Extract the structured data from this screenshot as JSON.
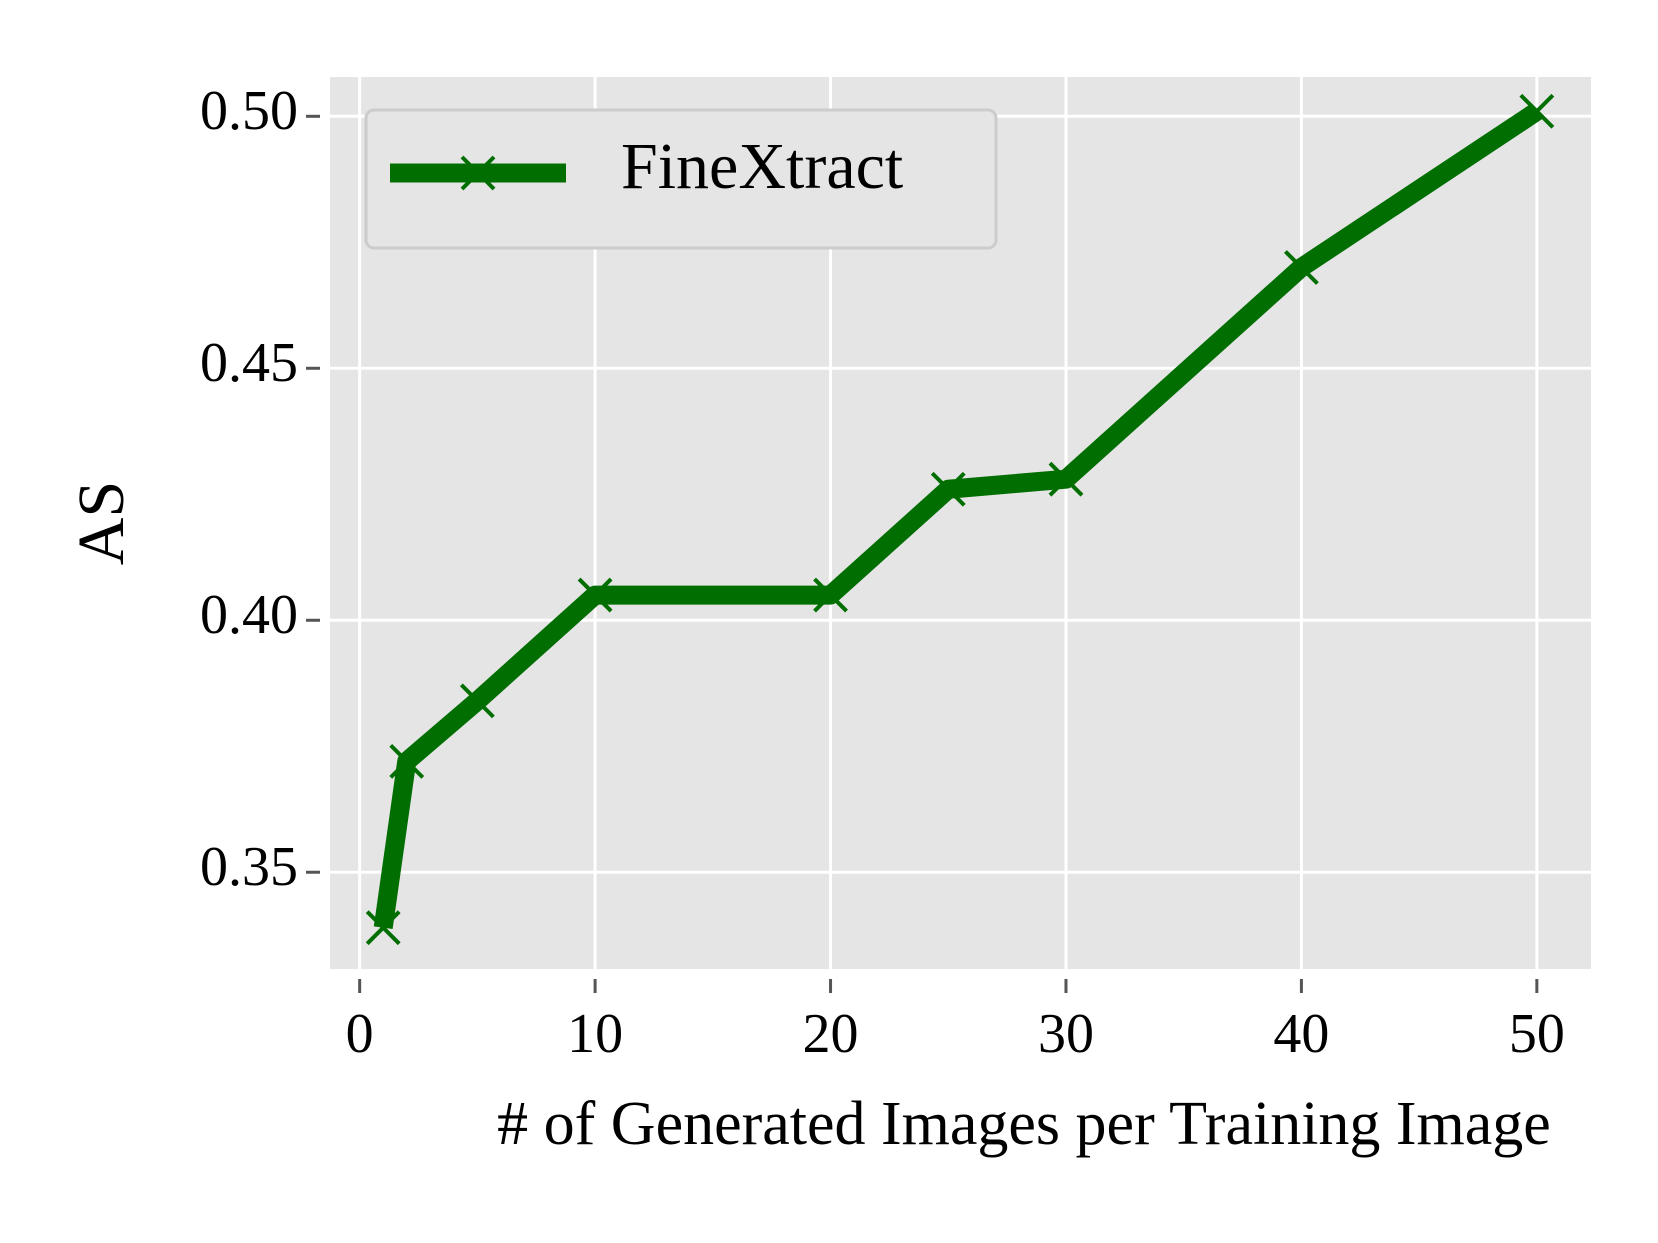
{
  "chart_data": {
    "type": "line",
    "x_label": "# of Generated Images per Training Image",
    "y_label": "AS",
    "x": [
      1,
      2,
      5,
      10,
      20,
      25,
      30,
      40,
      50
    ],
    "series": [
      {
        "name": "FineXtract",
        "color": "#006e00",
        "marker": "x",
        "values": [
          0.339,
          0.372,
          0.384,
          0.405,
          0.405,
          0.426,
          0.428,
          0.47,
          0.501
        ]
      }
    ],
    "xlim": [
      -1.26,
      52.3
    ],
    "ylim": [
      0.3308,
      0.5078
    ],
    "xticks": [
      0,
      10,
      20,
      30,
      40,
      50
    ],
    "yticks": [
      0.35,
      {
        "value": 0.4,
        "label": "0.40"
      },
      0.45,
      {
        "value": 0.5,
        "label": "0.50"
      }
    ],
    "grid": true,
    "legend": "upper-left"
  }
}
